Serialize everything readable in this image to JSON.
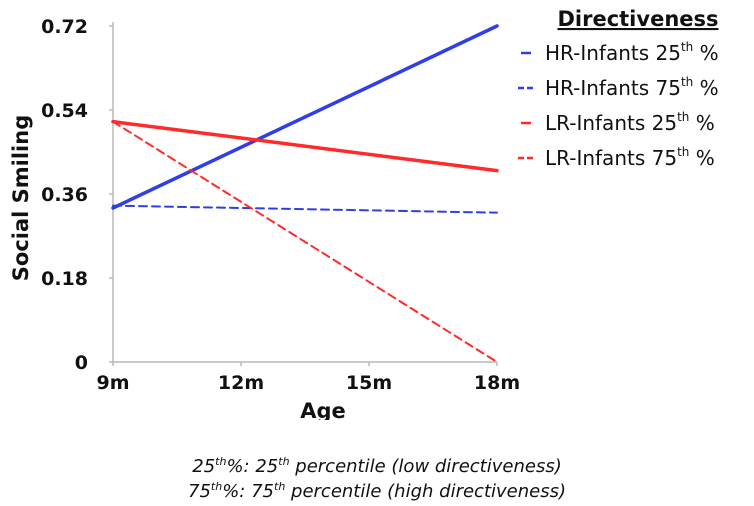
{
  "chart_data": {
    "type": "line",
    "xlabel": "Age",
    "ylabel": "Social Smiling",
    "categories": [
      "9m",
      "12m",
      "15m",
      "18m"
    ],
    "x": [
      9,
      12,
      15,
      18
    ],
    "xlim": [
      9,
      18
    ],
    "ylim": [
      0,
      0.72
    ],
    "yticks": [
      0,
      0.18,
      0.36,
      0.54,
      0.72
    ],
    "ytick_labels": [
      "0",
      "0.18",
      "0.36",
      "0.54",
      "0.72"
    ],
    "grid": false,
    "legend": {
      "title": "Directiveness",
      "position": "top-right"
    },
    "series": [
      {
        "name": "HR-Infants 25th %",
        "name_main": "HR-Infants 25",
        "name_sup": "th",
        "name_tail": " %",
        "color": "#2f3ee8",
        "dash": "solid",
        "start": [
          9,
          0.33
        ],
        "end": [
          18,
          0.72
        ]
      },
      {
        "name": "HR-Infants 75th %",
        "name_main": "HR-Infants 75",
        "name_sup": "th",
        "name_tail": " %",
        "color": "#2f3ee8",
        "dash": "dashed",
        "start": [
          9,
          0.335
        ],
        "end": [
          18,
          0.32
        ]
      },
      {
        "name": "LR-Infants 25th %",
        "name_main": "LR-Infants 25",
        "name_sup": "th",
        "name_tail": " %",
        "color": "#ff2a2a",
        "dash": "solid",
        "start": [
          9,
          0.515
        ],
        "end": [
          18,
          0.41
        ]
      },
      {
        "name": "LR-Infants 75th %",
        "name_main": "LR-Infants 75",
        "name_sup": "th",
        "name_tail": " %",
        "color": "#ff2a2a",
        "dash": "dashed",
        "start": [
          9,
          0.515
        ],
        "end": [
          18,
          0.0
        ]
      }
    ]
  },
  "footnotes": {
    "line1": {
      "a": "25",
      "a_sup": "th",
      "b": "%: 25",
      "b_sup": "th",
      "c": " percentile (low directiveness)"
    },
    "line2": {
      "a": "75",
      "a_sup": "th",
      "b": "%: 75",
      "b_sup": "th",
      "c": " percentile (high directiveness)"
    }
  },
  "colors": {
    "axis": "#b8b8b8",
    "text": "#111111",
    "background": "#ffffff"
  }
}
